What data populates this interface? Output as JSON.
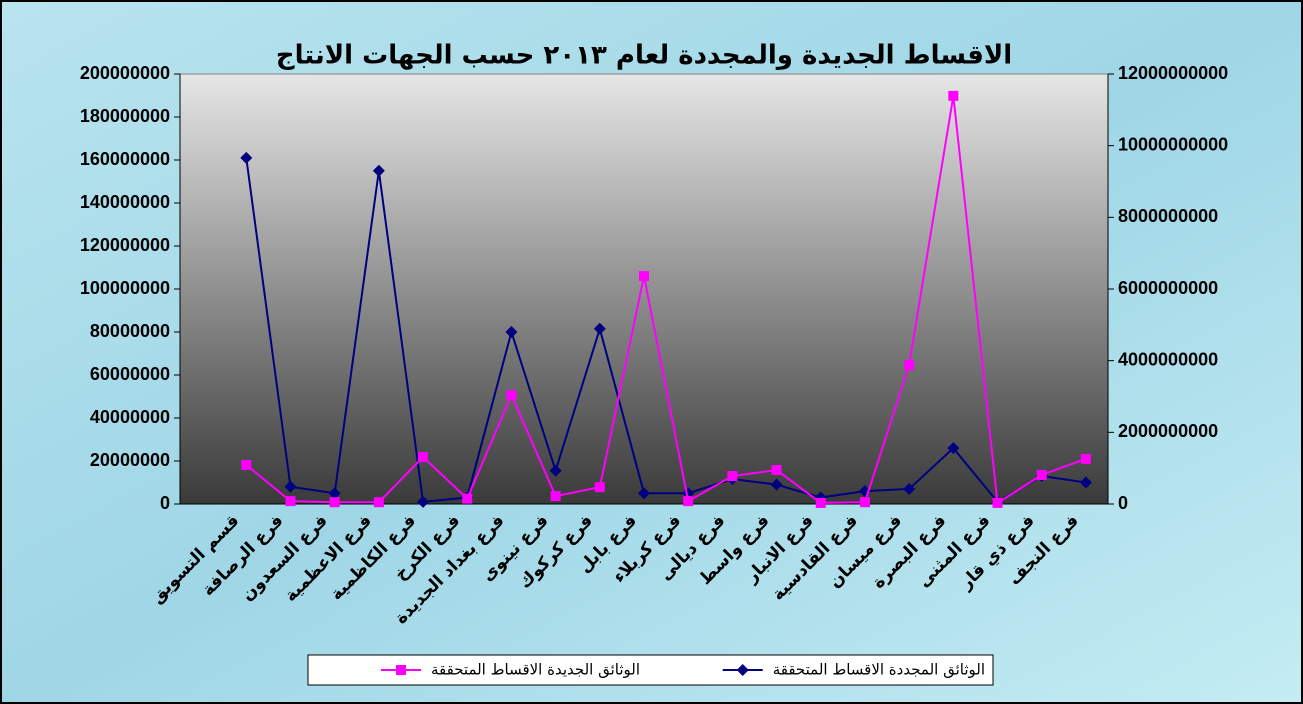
{
  "chart_data": {
    "type": "line",
    "title": "الاقساط الجديدة والمجددة لعام ٢٠١٣ حسب الجهات الانتاج",
    "categories": [
      null,
      "قسم التسويق",
      "فرع الرصافة",
      "فرع السعدون",
      "فرع الاعظمية",
      "فرع الكاظمية",
      "فرع الكرخ",
      "فرع بغداد الجديدة",
      "فرع نينوى",
      "فرع كركوك",
      "فرع بابل",
      "فرع كربلاء",
      "فرع ديالى",
      "فرع واسط",
      "فرع الانبار",
      "فرع القادسية",
      "فرع ميسان",
      "فرع البصرة",
      "فرع المثنى",
      "فرع ذي قار",
      "فرع النجف"
    ],
    "series": [
      {
        "name": "الوثائق المجددة الاقساط المتحققة",
        "color": "#000080",
        "marker": "diamond",
        "values": [
          null,
          161000000,
          8000000,
          5000000,
          155000000,
          1000000,
          3000000,
          80000000,
          15500000,
          81500000,
          5000000,
          5000000,
          11600000,
          9000000,
          3000000,
          6000000,
          7000000,
          26000000,
          1000000,
          13000000,
          10000000
        ]
      },
      {
        "name": "الوثائق الجديدة الاقساط المتحققة",
        "color": "#ff00ff",
        "marker": "square",
        "axis": "y2",
        "values": [
          null,
          1090000000,
          80000000,
          50000000,
          50000000,
          1310000000,
          150000000,
          3040000000,
          220000000,
          470000000,
          6360000000,
          80000000,
          780000000,
          950000000,
          30000000,
          50000000,
          3880000000,
          11390000000,
          30000000,
          810000000,
          1260000000
        ]
      }
    ],
    "ylim": [
      0,
      200000000
    ],
    "yticks": [
      0,
      20000000,
      40000000,
      60000000,
      80000000,
      100000000,
      120000000,
      140000000,
      160000000,
      180000000,
      200000000
    ],
    "y2lim": [
      0,
      12000000000
    ],
    "y2ticks": [
      0,
      2000000000,
      4000000000,
      6000000000,
      8000000000,
      10000000000,
      12000000000
    ],
    "legend": "bottom"
  }
}
